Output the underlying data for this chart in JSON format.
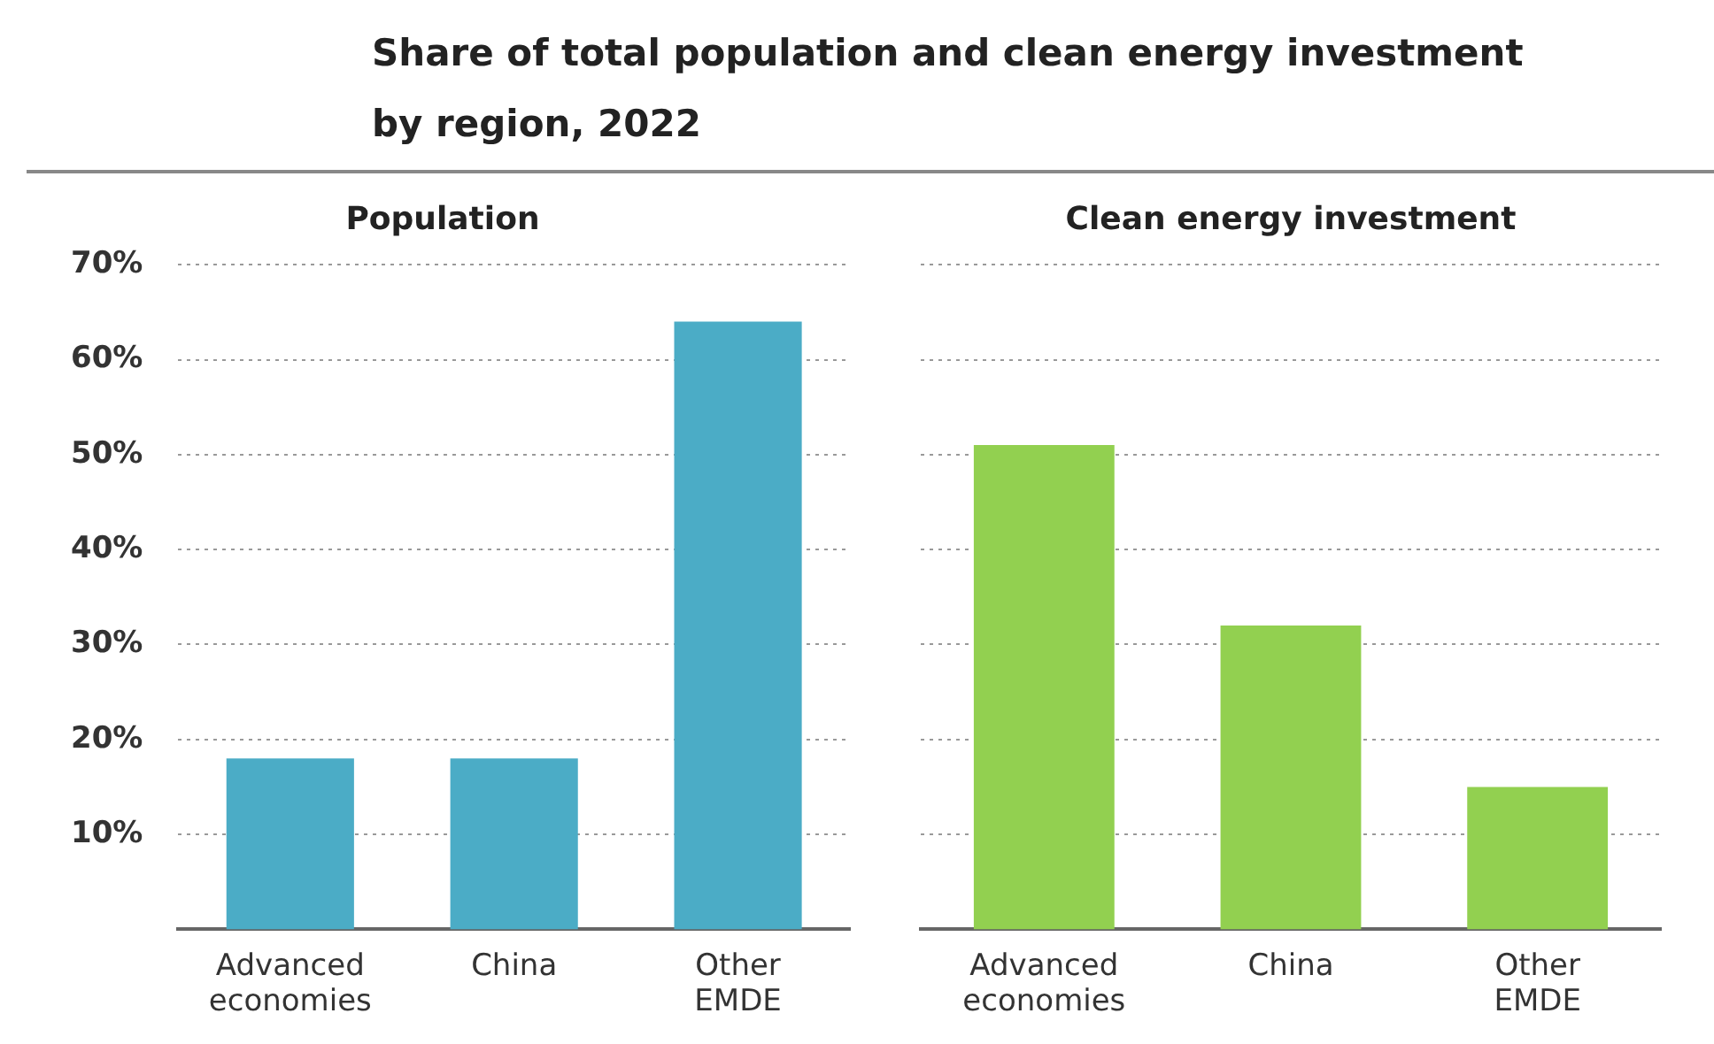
{
  "chart_data": [
    {
      "type": "bar",
      "title": "Share of total population and clean energy investment by region, 2022",
      "subtitle": "Population",
      "categories": [
        "Advanced economies",
        "China",
        "Other EMDE"
      ],
      "values": [
        18,
        18,
        64
      ],
      "color": "#4bacc6",
      "ylim": [
        0,
        70
      ],
      "yticks": [
        {
          "value": 10,
          "label": "10%"
        },
        {
          "value": 20,
          "label": "20%"
        },
        {
          "value": 30,
          "label": "30%"
        },
        {
          "value": 40,
          "label": "40%"
        },
        {
          "value": 50,
          "label": "50%"
        },
        {
          "value": 60,
          "label": "60%"
        },
        {
          "value": 70,
          "label": "70%"
        }
      ],
      "grid": "y"
    },
    {
      "type": "bar",
      "subtitle": "Clean energy investment",
      "categories": [
        "Advanced economies",
        "China",
        "Other EMDE"
      ],
      "values": [
        51,
        32,
        15
      ],
      "color": "#92d050",
      "ylim": [
        0,
        70
      ],
      "yticks": [
        10,
        20,
        30,
        40,
        50,
        60,
        70
      ],
      "grid": "y",
      "tick_labels": "x"
    }
  ]
}
